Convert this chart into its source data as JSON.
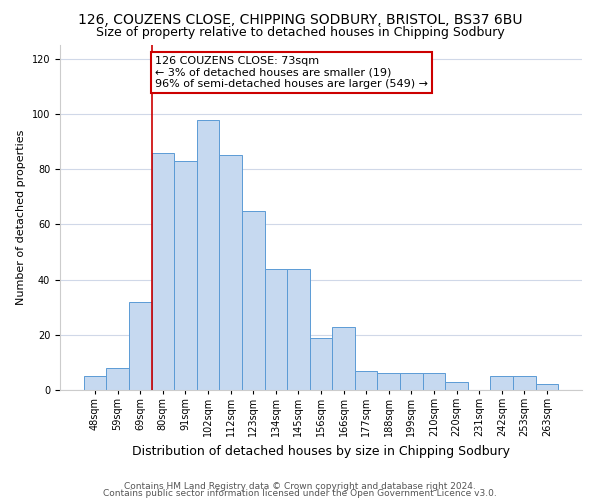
{
  "title": "126, COUZENS CLOSE, CHIPPING SODBURY, BRISTOL, BS37 6BU",
  "subtitle": "Size of property relative to detached houses in Chipping Sodbury",
  "xlabel": "Distribution of detached houses by size in Chipping Sodbury",
  "ylabel": "Number of detached properties",
  "footer1": "Contains HM Land Registry data © Crown copyright and database right 2024.",
  "footer2": "Contains public sector information licensed under the Open Government Licence v3.0.",
  "bin_labels": [
    "48sqm",
    "59sqm",
    "69sqm",
    "80sqm",
    "91sqm",
    "102sqm",
    "112sqm",
    "123sqm",
    "134sqm",
    "145sqm",
    "156sqm",
    "166sqm",
    "177sqm",
    "188sqm",
    "199sqm",
    "210sqm",
    "220sqm",
    "231sqm",
    "242sqm",
    "253sqm",
    "263sqm"
  ],
  "bar_heights": [
    5,
    8,
    32,
    86,
    83,
    98,
    85,
    65,
    44,
    44,
    19,
    23,
    7,
    6,
    6,
    6,
    3,
    0,
    5,
    5,
    2
  ],
  "bar_color": "#c6d9f0",
  "bar_edge_color": "#5b9bd5",
  "annotation_box_text": "126 COUZENS CLOSE: 73sqm\n← 3% of detached houses are smaller (19)\n96% of semi-detached houses are larger (549) →",
  "annotation_box_edge_color": "#cc0000",
  "vline_x_index": 2,
  "vline_color": "#cc0000",
  "ylim": [
    0,
    125
  ],
  "yticks": [
    0,
    20,
    40,
    60,
    80,
    100,
    120
  ],
  "background_color": "#ffffff",
  "grid_color": "#d0d8e8",
  "title_fontsize": 10,
  "subtitle_fontsize": 9,
  "xlabel_fontsize": 9,
  "ylabel_fontsize": 8,
  "tick_fontsize": 7,
  "annotation_fontsize": 8,
  "footer_fontsize": 6.5
}
